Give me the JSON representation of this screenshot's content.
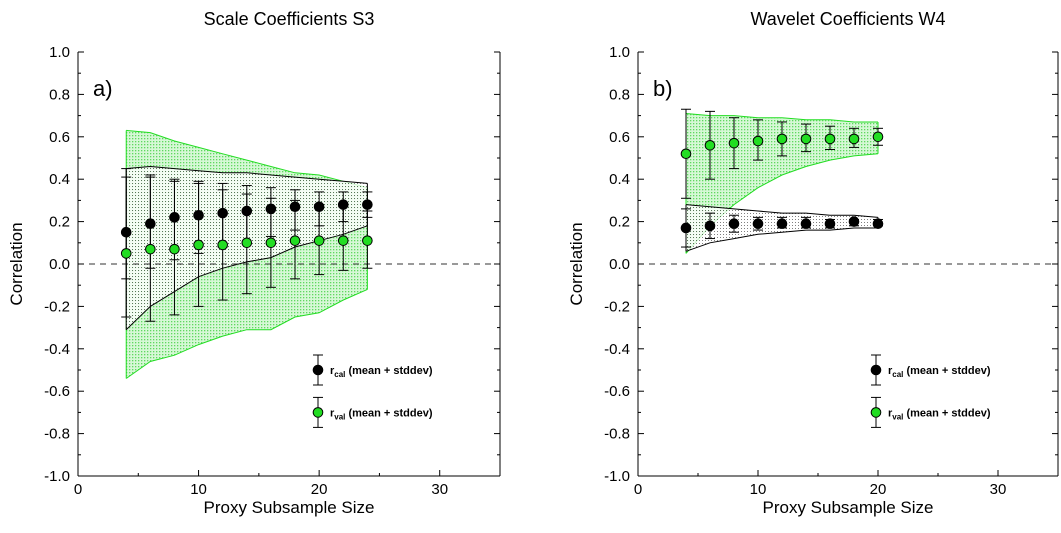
{
  "colors": {
    "cal": "#000000",
    "val": "#22dd22",
    "val_band_fill": "#7ee87e",
    "val_band_edge": "#22dd22",
    "cal_band_edge": "#000000"
  },
  "legend": {
    "cal_main": "r",
    "cal_sub": "cal",
    "cal_text": " (mean + stddev)",
    "val_main": "r",
    "val_sub": "val",
    "val_text": " (mean + stddev)"
  },
  "chart_data": [
    {
      "type": "scatter",
      "title": "Scale Coefficients S3",
      "panel_label": "a)",
      "xlabel": "Proxy Subsample Size",
      "ylabel": "Correlation",
      "xlim": [
        0,
        35
      ],
      "ylim": [
        -1.0,
        1.0
      ],
      "xticks": [
        0,
        10,
        20,
        30
      ],
      "xtick_labels": [
        "0",
        "10",
        "20",
        "30"
      ],
      "yticks": [
        1.0,
        0.8,
        0.6,
        0.4,
        0.2,
        0.0,
        -0.2,
        -0.4,
        -0.6,
        -0.8,
        -1.0
      ],
      "ytick_labels": [
        "1.0",
        "0.8",
        "0.6",
        "0.4",
        "0.2",
        "0.0",
        "-0.2",
        "-0.4",
        "-0.6",
        "-0.8",
        "-1.0"
      ],
      "x": [
        4,
        6,
        8,
        10,
        12,
        14,
        16,
        18,
        20,
        22,
        24
      ],
      "series": [
        {
          "key": "cal",
          "mean": [
            0.15,
            0.19,
            0.22,
            0.23,
            0.24,
            0.25,
            0.26,
            0.27,
            0.27,
            0.28,
            0.28
          ],
          "upper": [
            0.41,
            0.41,
            0.4,
            0.39,
            0.38,
            0.37,
            0.36,
            0.35,
            0.34,
            0.34,
            0.34
          ],
          "lower": [
            -0.07,
            -0.02,
            0.02,
            0.05,
            0.08,
            0.1,
            0.13,
            0.16,
            0.18,
            0.2,
            0.22
          ]
        },
        {
          "key": "val",
          "mean": [
            0.05,
            0.07,
            0.07,
            0.09,
            0.09,
            0.1,
            0.1,
            0.11,
            0.11,
            0.11,
            0.11
          ],
          "upper": [
            0.45,
            0.42,
            0.39,
            0.38,
            0.35,
            0.33,
            0.31,
            0.3,
            0.28,
            0.27,
            0.25
          ],
          "lower": [
            -0.25,
            -0.27,
            -0.24,
            -0.2,
            -0.17,
            -0.14,
            -0.11,
            -0.07,
            -0.05,
            -0.03,
            -0.02
          ]
        }
      ],
      "bands": [
        {
          "key": "val",
          "x": [
            4,
            6,
            8,
            10,
            12,
            14,
            16,
            18,
            20,
            22,
            24
          ],
          "upper": [
            0.63,
            0.62,
            0.58,
            0.55,
            0.52,
            0.49,
            0.46,
            0.43,
            0.42,
            0.39,
            0.36
          ],
          "lower": [
            -0.54,
            -0.46,
            -0.43,
            -0.38,
            -0.34,
            -0.31,
            -0.31,
            -0.25,
            -0.23,
            -0.17,
            -0.12
          ]
        },
        {
          "key": "cal",
          "x": [
            4,
            6,
            8,
            10,
            12,
            14,
            16,
            18,
            20,
            22,
            24
          ],
          "upper": [
            0.45,
            0.46,
            0.45,
            0.44,
            0.43,
            0.43,
            0.42,
            0.41,
            0.4,
            0.39,
            0.38
          ],
          "lower": [
            -0.31,
            -0.2,
            -0.13,
            -0.06,
            -0.02,
            0.01,
            0.03,
            0.08,
            0.11,
            0.14,
            0.18
          ]
        }
      ]
    },
    {
      "type": "scatter",
      "title": "Wavelet Coefficients W4",
      "panel_label": "b)",
      "xlabel": "Proxy Subsample Size",
      "ylabel": "Correlation",
      "xlim": [
        0,
        35
      ],
      "ylim": [
        -1.0,
        1.0
      ],
      "xticks": [
        0,
        10,
        20,
        30
      ],
      "xtick_labels": [
        "0",
        "10",
        "20",
        "30"
      ],
      "yticks": [
        1.0,
        0.8,
        0.6,
        0.4,
        0.2,
        0.0,
        -0.2,
        -0.4,
        -0.6,
        -0.8,
        -1.0
      ],
      "ytick_labels": [
        "1.0",
        "0.8",
        "0.6",
        "0.4",
        "0.2",
        "0.0",
        "-0.2",
        "-0.4",
        "-0.6",
        "-0.8",
        "-1.0"
      ],
      "x": [
        4,
        6,
        8,
        10,
        12,
        14,
        16,
        18,
        20
      ],
      "series": [
        {
          "key": "cal",
          "mean": [
            0.17,
            0.18,
            0.19,
            0.19,
            0.19,
            0.19,
            0.19,
            0.2,
            0.19
          ],
          "upper": [
            0.26,
            0.24,
            0.23,
            0.22,
            0.22,
            0.22,
            0.21,
            0.21,
            0.21
          ],
          "lower": [
            0.08,
            0.12,
            0.15,
            0.16,
            0.17,
            0.17,
            0.17,
            0.18,
            0.18
          ]
        },
        {
          "key": "val",
          "mean": [
            0.52,
            0.56,
            0.57,
            0.58,
            0.59,
            0.59,
            0.59,
            0.59,
            0.6
          ],
          "upper": [
            0.73,
            0.72,
            0.69,
            0.68,
            0.67,
            0.66,
            0.65,
            0.64,
            0.64
          ],
          "lower": [
            0.31,
            0.4,
            0.45,
            0.49,
            0.51,
            0.53,
            0.54,
            0.55,
            0.56
          ]
        }
      ],
      "bands": [
        {
          "key": "val",
          "x": [
            4,
            6,
            8,
            10,
            12,
            14,
            16,
            18,
            20
          ],
          "upper": [
            0.71,
            0.7,
            0.7,
            0.69,
            0.69,
            0.68,
            0.68,
            0.67,
            0.67
          ],
          "lower": [
            0.05,
            0.18,
            0.28,
            0.36,
            0.42,
            0.46,
            0.49,
            0.51,
            0.52
          ]
        },
        {
          "key": "cal",
          "x": [
            4,
            6,
            8,
            10,
            12,
            14,
            16,
            18,
            20
          ],
          "upper": [
            0.28,
            0.27,
            0.26,
            0.25,
            0.24,
            0.24,
            0.23,
            0.23,
            0.22
          ],
          "lower": [
            0.06,
            0.1,
            0.12,
            0.14,
            0.15,
            0.16,
            0.16,
            0.17,
            0.17
          ]
        }
      ]
    }
  ]
}
